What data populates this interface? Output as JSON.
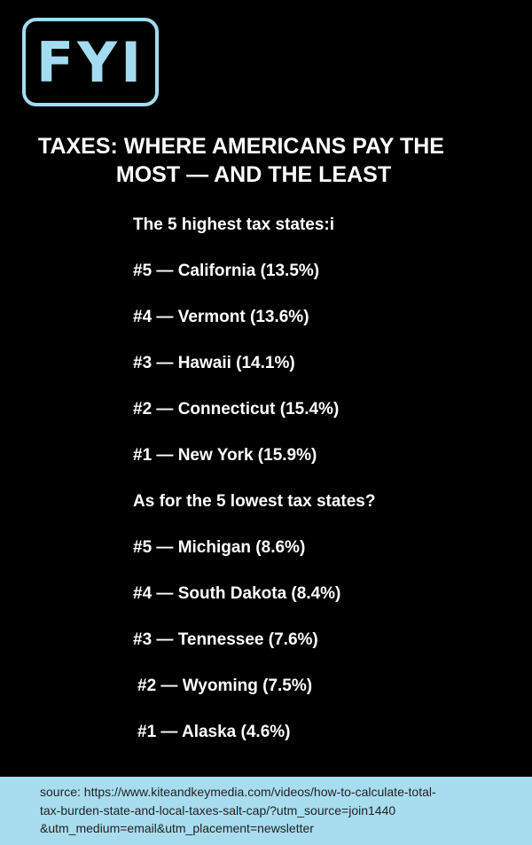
{
  "logo": "FYI",
  "title": {
    "lines": [
      "TAXES: WHERE AMERICANS PAY THE",
      "MOST — AND THE LEAST"
    ]
  },
  "highest": {
    "heading": "The 5 highest tax states:i",
    "items": [
      "#5 — California (13.5%)",
      "#4 — Vermont (13.6%)",
      "#3 — Hawaii (14.1%)",
      "#2 — Connecticut (15.4%)",
      "#1 — New York (15.9%)"
    ]
  },
  "lowest": {
    "heading": "As for the 5 lowest tax states?",
    "items": [
      "#5 — Michigan (8.6%)",
      "#4 — South Dakota (8.4%)",
      "#3 — Tennessee (7.6%)",
      "#2 — Wyoming (7.5%)",
      "#1 — Alaska (4.6%)"
    ]
  },
  "source": {
    "lines": [
      "source: https://www.kiteandkeymedia.com/videos/how-to-calculate-total-",
      "tax-burden-state-and-local-taxes-salt-cap/?utm_source=join1440",
      "&utm_medium=email&utm_placement=newsletter"
    ]
  }
}
